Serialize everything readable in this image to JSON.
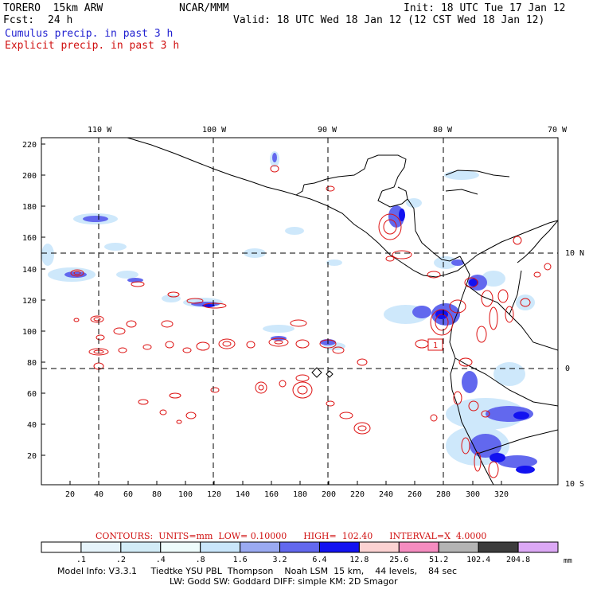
{
  "header": {
    "model": "TORERO  15km ARW",
    "org": "NCAR/MMM",
    "init": "Init: 18 UTC Tue 17 Jan 12",
    "fcst_label": "Fcst:",
    "fcst_value": "24 h",
    "valid": "Valid: 18 UTC Wed 18 Jan 12 (12 CST Wed 18 Jan 12)",
    "line_cumulus": "Cumulus precip. in past 3 h",
    "line_explicit": "Explicit precip. in past 3 h"
  },
  "axes": {
    "top_lon": [
      "110 W",
      "100 W",
      "90 W",
      "80 W",
      "70 W"
    ],
    "right_lat": [
      "10 N",
      "0",
      "10 S"
    ],
    "left_y": [
      "220",
      "200",
      "180",
      "160",
      "140",
      "120",
      "100",
      "80",
      "60",
      "40",
      "20"
    ],
    "bottom_x": [
      "20",
      "40",
      "60",
      "80",
      "100",
      "120",
      "140",
      "160",
      "180",
      "200",
      "220",
      "240",
      "260",
      "280",
      "300",
      "320"
    ]
  },
  "box_label": "1",
  "contours_info": "CONTOURS:  UNITS=mm  LOW= 0.10000      HIGH=  102.40      INTERVAL=X  4.0000",
  "colorbar": {
    "labels": [
      ".1",
      ".2",
      ".4",
      ".8",
      "1.6",
      "3.2",
      "6.4",
      "12.8",
      "25.6",
      "51.2",
      "102.4",
      "204.8"
    ],
    "unit": "mm",
    "colors": [
      "#ffffff",
      "#e6f4fb",
      "#d2ecf7",
      "#eefcfc",
      "#c9e6fb",
      "#9aaaf2",
      "#6268ee",
      "#1212f0",
      "#fcd2d2",
      "#f58cc0",
      "#b4b4b4",
      "#3c3c3c",
      "#dca8f5"
    ]
  },
  "footer": {
    "line1": "Model Info: V3.3.1     Tiedtke YSU PBL  Thompson    Noah LSM  15 km,    44 levels,    84 sec",
    "line2": "LW: Godd SW: Goddard DIFF: simple KM: 2D Smagor"
  },
  "colors": {
    "cumulus_text": "#1f1fd0",
    "explicit_text": "#d01010",
    "contour": "#dd1111",
    "precip_light": "#c9e6fb",
    "precip_mid": "#6268ee",
    "precip_heavy": "#1212f0"
  }
}
